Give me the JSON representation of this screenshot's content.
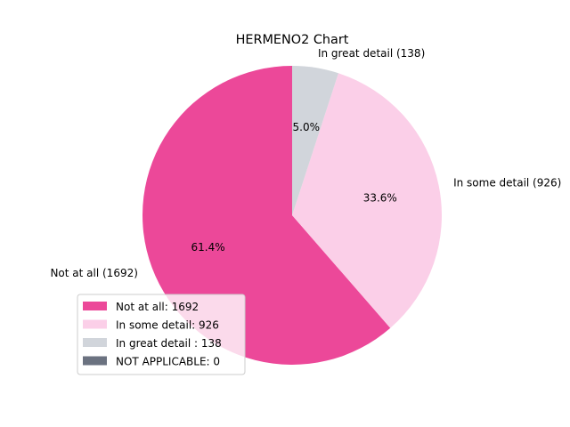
{
  "chart_data": {
    "type": "pie",
    "title": "HERMENO2 Chart",
    "slices": [
      {
        "label": "Not at all (1692)",
        "value": 1692,
        "pct_label": "61.4%",
        "color": "#ec4899",
        "legend": "Not at all: 1692"
      },
      {
        "label": "In some detail (926)",
        "value": 926,
        "pct_label": "33.6%",
        "color": "#fbcfe8",
        "legend": "In some detail: 926"
      },
      {
        "label": "In great detail  (138)",
        "value": 138,
        "pct_label": "5.0%",
        "color": "#d1d5db",
        "legend": "In great detail : 138"
      },
      {
        "label": "NOT APPLICABLE (0)",
        "value": 0,
        "pct_label": "",
        "color": "#6b7280",
        "legend": "NOT APPLICABLE: 0"
      }
    ],
    "legend_position": "lower-left"
  }
}
